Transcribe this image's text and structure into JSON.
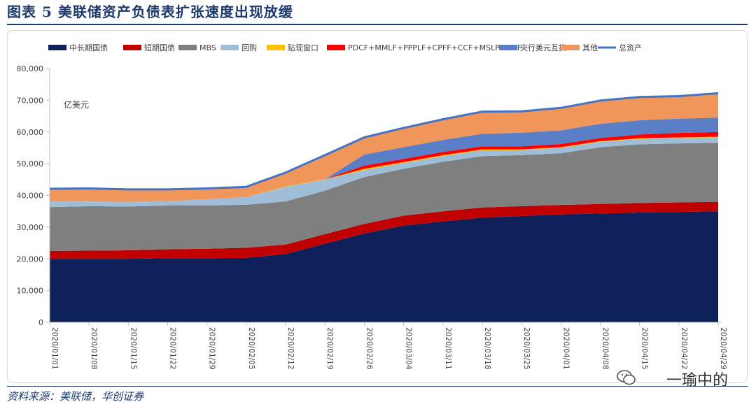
{
  "figure": {
    "title": "图表 5   美联储资产负债表扩张速度出现放缓",
    "source": "资料来源：美联储，华创证券",
    "watermark": "一瑜中的"
  },
  "chart_data": {
    "type": "area",
    "stacked": true,
    "unit_label": "亿美元",
    "ylim": [
      0,
      80000
    ],
    "yticks": [
      0,
      10000,
      20000,
      30000,
      40000,
      50000,
      60000,
      70000,
      80000
    ],
    "ytick_labels": [
      "0",
      "10,000",
      "20,000",
      "30,000",
      "40,000",
      "50,000",
      "60,000",
      "70,000",
      "80,000"
    ],
    "x": [
      "2020/01/01",
      "2020/01/08",
      "2020/01/15",
      "2020/01/22",
      "2020/01/29",
      "2020/02/05",
      "2020/02/12",
      "2020/02/19",
      "2020/02/26",
      "2020/03/04",
      "2020/03/11",
      "2020/03/18",
      "2020/03/25",
      "2020/04/01",
      "2020/04/08",
      "2020/04/15",
      "2020/04/22",
      "2020/04/29"
    ],
    "legend_position": "top",
    "series": [
      {
        "name": "中长期国债",
        "color": "#0d2059",
        "values": [
          20000,
          20000,
          20000,
          20200,
          20200,
          20300,
          21500,
          24800,
          28000,
          30500,
          31800,
          33000,
          33500,
          34000,
          34300,
          34600,
          34800,
          35000
        ]
      },
      {
        "name": "短期国债",
        "color": "#c00000",
        "values": [
          2500,
          2600,
          2700,
          2800,
          3000,
          3200,
          3000,
          3000,
          3000,
          3100,
          3200,
          3200,
          3100,
          3000,
          3000,
          3000,
          3000,
          3000
        ]
      },
      {
        "name": "MBS",
        "color": "#7f7f7f",
        "values": [
          13800,
          14000,
          13800,
          13800,
          13600,
          13600,
          13600,
          13700,
          14800,
          14800,
          15600,
          16200,
          16100,
          16300,
          17900,
          18500,
          18600,
          18600
        ]
      },
      {
        "name": "回购",
        "color": "#9fbdd6",
        "values": [
          1800,
          1500,
          1500,
          1400,
          2000,
          2400,
          4600,
          3500,
          2200,
          1800,
          1800,
          1800,
          1600,
          1700,
          1700,
          1700,
          1700,
          1700
        ]
      },
      {
        "name": "贴现窗口",
        "color": "#ffc000",
        "values": [
          0,
          0,
          0,
          0,
          0,
          0,
          100,
          100,
          400,
          300,
          300,
          300,
          200,
          200,
          200,
          200,
          200,
          200
        ]
      },
      {
        "name": "PDCF+MMLF+PPPLF+CPFF+CCF+MSLP+MLF",
        "color": "#ff0000",
        "values": [
          0,
          0,
          0,
          0,
          0,
          0,
          0,
          0,
          1000,
          1000,
          1000,
          1000,
          1000,
          1000,
          1000,
          1200,
          1400,
          1500
        ]
      },
      {
        "name": "央行美元互换",
        "color": "#5b7fc6",
        "values": [
          0,
          0,
          0,
          0,
          0,
          0,
          0,
          0,
          3500,
          3700,
          3800,
          3900,
          4300,
          4300,
          4500,
          4500,
          4500,
          4500
        ]
      },
      {
        "name": "其他",
        "color": "#f0965a",
        "values": [
          4000,
          4100,
          3900,
          3700,
          3400,
          3200,
          4400,
          7600,
          5400,
          6100,
          6400,
          7000,
          6700,
          7100,
          7300,
          7300,
          7100,
          7700
        ]
      }
    ],
    "total": {
      "name": "总资产",
      "color": "#4472c4",
      "values": [
        42100,
        42200,
        41900,
        41900,
        42200,
        42700,
        47200,
        52700,
        58300,
        61300,
        64000,
        66400,
        66500,
        67600,
        69900,
        71000,
        71300,
        72200
      ]
    }
  }
}
